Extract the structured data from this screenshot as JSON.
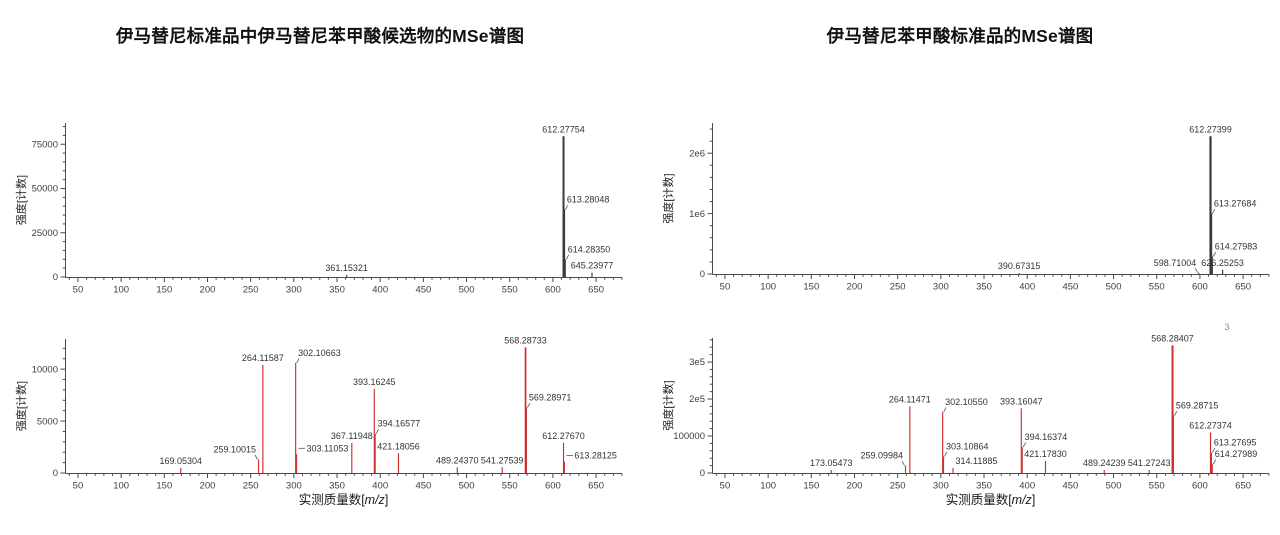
{
  "titles": {
    "left": "伊马替尼标准品中伊马替尼苯甲酸候选物的MSe谱图",
    "right": "伊马替尼苯甲酸标准品的MSe谱图"
  },
  "axis_labels": {
    "intensity": "强度[计数]",
    "mass_prefix": "实测质量数[",
    "mass_italic": "m/z",
    "mass_suffix": "]"
  },
  "colors": {
    "black_trace": "#3a3a3a",
    "red_trace": "#cf2e2e",
    "axis": "#4a4a4a",
    "tick_text": "#3f3f3f",
    "label_text": "#333333",
    "note_text": "#8a8a80"
  },
  "corner_note": "3",
  "chart_data": [
    {
      "id": "left-top",
      "type": "bar",
      "subtype": "centroided-mass-spectrum",
      "trace": "black",
      "ylabel": "强度[计数]",
      "xlim": [
        35,
        680
      ],
      "ylim": [
        0,
        87000
      ],
      "xticks": [
        50,
        100,
        150,
        200,
        250,
        300,
        350,
        400,
        450,
        500,
        550,
        600,
        650
      ],
      "yticks": [
        {
          "v": 0,
          "label": "0"
        },
        {
          "v": 25000,
          "label": "25000"
        },
        {
          "v": 50000,
          "label": "50000"
        },
        {
          "v": 75000,
          "label": "75000"
        }
      ],
      "yminor": 5000,
      "xminor": 10,
      "grid": false,
      "peaks": [
        {
          "m": 361.15321,
          "i": 1200,
          "t": "361.15321",
          "a": "c"
        },
        {
          "m": 612.27754,
          "i": 79500,
          "t": "612.27754",
          "a": "c",
          "sw": 2
        },
        {
          "m": 613.28048,
          "i": 38000,
          "t": "613.28048",
          "a": "r",
          "ld": "s",
          "sw": 1.4
        },
        {
          "m": 614.2835,
          "i": 10000,
          "t": "614.28350",
          "a": "r",
          "ld": "s"
        },
        {
          "m": 645.23977,
          "i": 2500,
          "t": "645.23977",
          "a": "c"
        }
      ]
    },
    {
      "id": "left-bottom",
      "type": "bar",
      "subtype": "centroided-mass-spectrum",
      "trace": "red",
      "ylabel": "强度[计数]",
      "xlabel_shown": true,
      "xlim": [
        35,
        680
      ],
      "ylim": [
        0,
        12900
      ],
      "xticks": [
        50,
        100,
        150,
        200,
        250,
        300,
        350,
        400,
        450,
        500,
        550,
        600,
        650
      ],
      "yticks": [
        {
          "v": 0,
          "label": "0"
        },
        {
          "v": 5000,
          "label": "5000"
        },
        {
          "v": 10000,
          "label": "10000"
        }
      ],
      "yminor": 1000,
      "xminor": 10,
      "grid": false,
      "peaks": [
        {
          "m": 169.05304,
          "i": 500,
          "t": "169.05304",
          "a": "c"
        },
        {
          "m": 259.10015,
          "i": 1300,
          "t": "259.10015",
          "a": "l",
          "ld": "s"
        },
        {
          "m": 264.11587,
          "i": 10400,
          "t": "264.11587",
          "a": "c"
        },
        {
          "m": 302.10663,
          "i": 10600,
          "t": "302.10663",
          "a": "r",
          "ld": "s"
        },
        {
          "m": 303.11053,
          "i": 1800,
          "t": "303.11053",
          "a": "r",
          "ld": "d"
        },
        {
          "m": 367.11948,
          "i": 2900,
          "t": "367.11948",
          "a": "c"
        },
        {
          "m": 393.16245,
          "i": 8100,
          "t": "393.16245",
          "a": "c"
        },
        {
          "m": 394.16577,
          "i": 3800,
          "t": "394.16577",
          "a": "r",
          "ld": "s"
        },
        {
          "m": 421.18056,
          "i": 1900,
          "t": "421.18056",
          "a": "c"
        },
        {
          "m": 489.2437,
          "i": 550,
          "t": "489.24370",
          "a": "c"
        },
        {
          "m": 541.27539,
          "i": 550,
          "t": "541.27539",
          "a": "c"
        },
        {
          "m": 568.28733,
          "i": 12100,
          "t": "568.28733",
          "a": "c",
          "sw": 1.7
        },
        {
          "m": 569.28971,
          "i": 6300,
          "t": "569.28971",
          "a": "r",
          "ld": "s"
        },
        {
          "m": 612.2767,
          "i": 2900,
          "t": "612.27670",
          "a": "c"
        },
        {
          "m": 613.28125,
          "i": 1100,
          "t": "613.28125",
          "a": "r",
          "ld": "d"
        }
      ]
    },
    {
      "id": "right-top",
      "type": "bar",
      "subtype": "centroided-mass-spectrum",
      "trace": "black",
      "ylabel": "强度[计数]",
      "xlim": [
        35,
        680
      ],
      "ylim": [
        0,
        2500000
      ],
      "xticks": [
        50,
        100,
        150,
        200,
        250,
        300,
        350,
        400,
        450,
        500,
        550,
        600,
        650
      ],
      "yticks": [
        {
          "v": 0,
          "label": "0"
        },
        {
          "v": 1000000,
          "label": "1e6"
        },
        {
          "v": 2000000,
          "label": "2e6"
        }
      ],
      "yminor": 200000,
      "xminor": 10,
      "grid": false,
      "peaks": [
        {
          "m": 390.67315,
          "i": 15000,
          "t": "390.67315",
          "a": "c"
        },
        {
          "m": 598.71004,
          "i": 20000,
          "t": "598.71004",
          "a": "l",
          "ld": "s"
        },
        {
          "m": 612.27399,
          "i": 2280000,
          "t": "612.27399",
          "a": "c",
          "sw": 2.2
        },
        {
          "m": 613.27684,
          "i": 1000000,
          "t": "613.27684",
          "a": "r",
          "ld": "s",
          "sw": 1.6
        },
        {
          "m": 614.27983,
          "i": 290000,
          "t": "614.27983",
          "a": "r",
          "ld": "s",
          "sw": 1.3
        },
        {
          "m": 626.25253,
          "i": 70000,
          "t": "626.25253",
          "a": "c"
        }
      ]
    },
    {
      "id": "right-bottom",
      "type": "bar",
      "subtype": "centroided-mass-spectrum",
      "trace": "red",
      "ylabel": "强度[计数]",
      "xlabel_shown": true,
      "xlim": [
        35,
        680
      ],
      "ylim": [
        0,
        365000
      ],
      "xticks": [
        50,
        100,
        150,
        200,
        250,
        300,
        350,
        400,
        450,
        500,
        550,
        600,
        650
      ],
      "yticks": [
        {
          "v": 0,
          "label": "0"
        },
        {
          "v": 100000,
          "label": "100000"
        },
        {
          "v": 200000,
          "label": "2e5"
        },
        {
          "v": 300000,
          "label": "3e5"
        }
      ],
      "yminor": 20000,
      "xminor": 10,
      "grid": false,
      "peaks": [
        {
          "m": 173.05473,
          "i": 8000,
          "t": "173.05473",
          "a": "c"
        },
        {
          "m": 259.09984,
          "i": 20000,
          "t": "259.09984",
          "a": "l",
          "ld": "s"
        },
        {
          "m": 264.11471,
          "i": 180000,
          "t": "264.11471",
          "a": "c"
        },
        {
          "m": 302.1055,
          "i": 165000,
          "t": "302.10550",
          "a": "r",
          "ld": "s"
        },
        {
          "m": 303.10864,
          "i": 45000,
          "t": "303.10864",
          "a": "r",
          "ld": "s"
        },
        {
          "m": 314.11885,
          "i": 14000,
          "t": "314.11885",
          "a": "r"
        },
        {
          "m": 393.16047,
          "i": 175000,
          "t": "393.16047",
          "a": "c"
        },
        {
          "m": 394.16374,
          "i": 70000,
          "t": "394.16374",
          "a": "r",
          "ld": "s"
        },
        {
          "m": 421.1783,
          "i": 33000,
          "t": "421.17830",
          "a": "c"
        },
        {
          "m": 489.24239,
          "i": 8000,
          "t": "489.24239",
          "a": "c"
        },
        {
          "m": 541.27243,
          "i": 8000,
          "t": "541.27243",
          "a": "c"
        },
        {
          "m": 568.28407,
          "i": 345000,
          "t": "568.28407",
          "a": "c",
          "sw": 2
        },
        {
          "m": 569.28715,
          "i": 155000,
          "t": "569.28715",
          "a": "r",
          "ld": "s"
        },
        {
          "m": 612.27374,
          "i": 110000,
          "t": "612.27374",
          "a": "c"
        },
        {
          "m": 613.27695,
          "i": 55000,
          "t": "613.27695",
          "a": "r",
          "ld": "s"
        },
        {
          "m": 614.27989,
          "i": 24000,
          "t": "614.27989",
          "a": "r",
          "ld": "s"
        }
      ]
    }
  ]
}
